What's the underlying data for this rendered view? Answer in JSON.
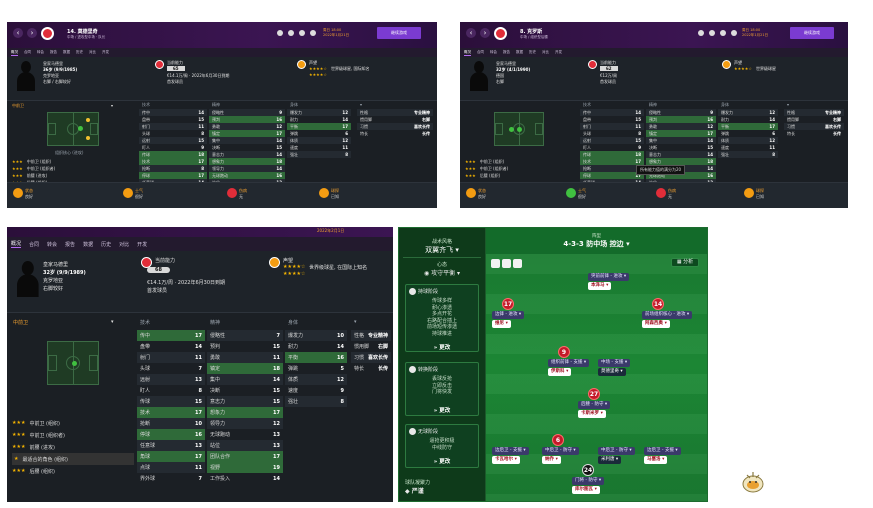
{
  "shot1": {
    "nav_number": "14.",
    "player_name": "莫德里奇",
    "subtitle": "中场 / 进攻型中场 · 队长",
    "date": "周日 18:00",
    "date_line2": "2022年1月21日",
    "continue_label": "继续游戏",
    "tabs": [
      "概况",
      "合同",
      "转会",
      "报告",
      "数据",
      "历史",
      "对比",
      "开发"
    ],
    "profile": {
      "club": "皇家马德里",
      "age": "36岁 (9/9/1985)",
      "nation": "克罗地亚",
      "foot": "右脚 / 右脚较好"
    },
    "ability": {
      "label": "当前能力",
      "value": "65",
      "wage": "€14.1万/周 · 2022年6月30日到期",
      "status": "首发球员"
    },
    "reputation": {
      "label": "声望",
      "text": "世界级球星, 国际知名"
    },
    "position_label": "中前卫",
    "position_role": "组织核心 (进攻)",
    "roles": [
      {
        "stars": "★★★",
        "label": "中前卫 (组织)"
      },
      {
        "stars": "★★★",
        "label": "中前卫 (组织者)"
      },
      {
        "stars": "★★★",
        "label": "前腰 (进攻)"
      },
      {
        "stars": "★★★",
        "label": "后腰 (组织)"
      }
    ],
    "attr_headers": [
      "技术",
      "精神",
      "身体"
    ],
    "tech": [
      [
        "传中",
        "14"
      ],
      [
        "盘带",
        "15"
      ],
      [
        "射门",
        "11"
      ],
      [
        "头球",
        "8"
      ],
      [
        "远射",
        "15"
      ],
      [
        "盯人",
        "9"
      ],
      [
        "传球",
        "18"
      ],
      [
        "技术",
        "17"
      ],
      [
        "抢断",
        "8"
      ],
      [
        "停球",
        "17"
      ],
      [
        "任意球",
        "14"
      ],
      [
        "角球",
        "14"
      ],
      [
        "点球",
        "13"
      ],
      [
        "界外球",
        "6"
      ]
    ],
    "mental": [
      [
        "侵略性",
        "9"
      ],
      [
        "预判",
        "16"
      ],
      [
        "勇敢",
        "12"
      ],
      [
        "镇定",
        "17"
      ],
      [
        "集中",
        "14"
      ],
      [
        "决断",
        "15"
      ],
      [
        "意志力",
        "14"
      ],
      [
        "想象力",
        "18"
      ],
      [
        "领导力",
        "14"
      ],
      [
        "无球跑动",
        "16"
      ],
      [
        "站位",
        "13"
      ],
      [
        "团队合作",
        "16"
      ],
      [
        "视野",
        "18"
      ],
      [
        "工作投入",
        "15"
      ]
    ],
    "phys": [
      [
        "爆发力",
        "12"
      ],
      [
        "耐力",
        "14"
      ],
      [
        "平衡",
        "17"
      ],
      [
        "弹跳",
        "6"
      ],
      [
        "体质",
        "12"
      ],
      [
        "速度",
        "11"
      ],
      [
        "强壮",
        "8"
      ]
    ],
    "personality": [
      [
        "性格",
        "专业精神"
      ],
      [
        "惯用脚",
        "右脚"
      ],
      [
        "习惯",
        "喜欢长传"
      ],
      [
        "特长",
        "长传"
      ]
    ],
    "bottom": [
      {
        "title": "状态",
        "value": "良好"
      },
      {
        "title": "士气",
        "value": "很好"
      },
      {
        "title": "伤病",
        "value": "无"
      },
      {
        "title": "球探",
        "value": "已知"
      }
    ]
  },
  "shot2": {
    "nav_number": "8.",
    "player_name": "克罗斯",
    "subtitle": "中场 / 组织型后腰",
    "date": "周日 18:00",
    "date_line2": "2022年1月21日",
    "continue_label": "继续游戏",
    "tabs": [
      "概况",
      "合同",
      "转会",
      "报告",
      "数据",
      "历史",
      "对比",
      "开发"
    ],
    "profile": {
      "club": "皇家马德里",
      "age": "32岁 (4/1/1990)",
      "nation": "德国",
      "foot": "右脚"
    },
    "ability": {
      "label": "当前能力",
      "value": "62",
      "wage": "€12万/周",
      "status": "首发球员"
    },
    "reputation": {
      "label": "声望",
      "text": "世界级球星"
    },
    "tooltip": "所有能力值的满分为20"
  },
  "shot3": {
    "date_line2": "2022年2月1日",
    "tabs": [
      "概况",
      "合同",
      "转会",
      "报告",
      "数据",
      "历史",
      "对比",
      "开发"
    ],
    "profile": {
      "club": "皇家马德里",
      "age": "32岁 (9/9/1989)",
      "nation": "克罗地亚",
      "foot": "右脚较好"
    },
    "ability": {
      "label": "当前能力",
      "value": "68",
      "wage": "€14.1万/周 · 2022年6月30日到期",
      "status": "首发球员"
    },
    "reputation": {
      "label": "声望",
      "text": "世界级球星, 在国际上知名"
    },
    "position_label": "中前卫",
    "attr_label": "技术",
    "highlight_role": "最适合的角色 (组织)",
    "tech": [
      [
        "传中",
        "17"
      ],
      [
        "盘带",
        "14"
      ],
      [
        "射门",
        "11"
      ],
      [
        "头球",
        "7"
      ],
      [
        "远射",
        "13"
      ],
      [
        "盯人",
        "8"
      ],
      [
        "传球",
        "15"
      ],
      [
        "技术",
        "17"
      ],
      [
        "抢断",
        "10"
      ],
      [
        "停球",
        "16"
      ],
      [
        "任意球",
        "13"
      ],
      [
        "角球",
        "17"
      ],
      [
        "点球",
        "11"
      ],
      [
        "界外球",
        "7"
      ]
    ],
    "mental": [
      [
        "侵略性",
        "7"
      ],
      [
        "预判",
        "15"
      ],
      [
        "勇敢",
        "11"
      ],
      [
        "镇定",
        "18"
      ],
      [
        "集中",
        "14"
      ],
      [
        "决断",
        "15"
      ],
      [
        "意志力",
        "15"
      ],
      [
        "想象力",
        "17"
      ],
      [
        "领导力",
        "12"
      ],
      [
        "无球跑动",
        "13"
      ],
      [
        "站位",
        "13"
      ],
      [
        "团队合作",
        "17"
      ],
      [
        "视野",
        "19"
      ],
      [
        "工作投入",
        "14"
      ]
    ],
    "phys": [
      [
        "爆发力",
        "10"
      ],
      [
        "耐力",
        "14"
      ],
      [
        "平衡",
        "16"
      ],
      [
        "弹跳",
        "5"
      ],
      [
        "体质",
        "12"
      ],
      [
        "速度",
        "9"
      ],
      [
        "强壮",
        "8"
      ]
    ]
  },
  "tactic": {
    "left": {
      "mentality_title": "战术风格",
      "mentality_value": "双翼齐飞",
      "mood_title": "心态",
      "mood_value": "攻守平衡",
      "in_possession_title": "持球阶段",
      "in_possession_lines": [
        "传球多样",
        "耐心渗透",
        "多点开花",
        "右路配合插上",
        "前场短传渗透",
        "持球推进"
      ],
      "transition_title": "转换阶段",
      "transition_lines": [
        "丢球反抢",
        "立即反击",
        "门将快发"
      ],
      "out_possession_title": "无球阶段",
      "out_possession_lines": [
        "逼抢更积极",
        "中线防守"
      ],
      "change_label": "» 更改",
      "footer_title": "球队凝聚力",
      "footer_value": "严谨"
    },
    "formation_small": "阵型",
    "formation": "4-3-3 防中场 控边",
    "analysis_label": "分析",
    "players": [
      {
        "num": "",
        "role": "突前前锋 - 进攻",
        "name": "本泽马"
      },
      {
        "num": "17",
        "role": "边锋 - 进攻",
        "name": "维尼"
      },
      {
        "num": "14",
        "role": "前场组织核心 - 进攻",
        "name": "阿森西奥"
      },
      {
        "num": "9",
        "role": "组织前锋 - 支援",
        "name": "伊斯科"
      },
      {
        "num": "",
        "role": "中场 - 支援",
        "name": "莫德里奇"
      },
      {
        "num": "27",
        "role": "后腰 - 防守",
        "name": "卡斯米罗"
      },
      {
        "num": "",
        "role": "边后卫 - 支援",
        "name": "卡瓦哈尔"
      },
      {
        "num": "6",
        "role": "中后卫 - 防守",
        "name": "纳乔"
      },
      {
        "num": "",
        "role": "中后卫 - 防守",
        "name": "米利唐"
      },
      {
        "num": "",
        "role": "边后卫 - 支援",
        "name": "马塞洛"
      },
      {
        "num": "24",
        "role": "门将 - 防守",
        "name": "库尔图瓦"
      }
    ]
  }
}
